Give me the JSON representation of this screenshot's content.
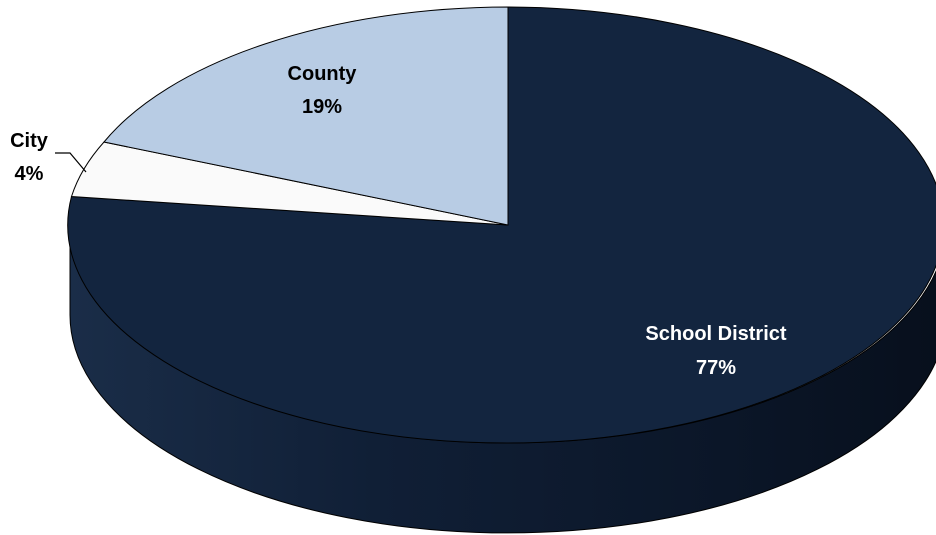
{
  "chart_data": {
    "type": "pie",
    "style": "3d",
    "slices": [
      {
        "category": "School District",
        "percent_label": "77%",
        "value": 77,
        "color": "#13253F",
        "label_color": "#FFFFFF"
      },
      {
        "category": "City",
        "percent_label": "4%",
        "value": 4,
        "color": "#FAFAFA",
        "label_color": "#000000"
      },
      {
        "category": "County",
        "percent_label": "19%",
        "value": 19,
        "color": "#B8CCE4",
        "label_color": "#000000"
      }
    ],
    "legend": "none"
  }
}
